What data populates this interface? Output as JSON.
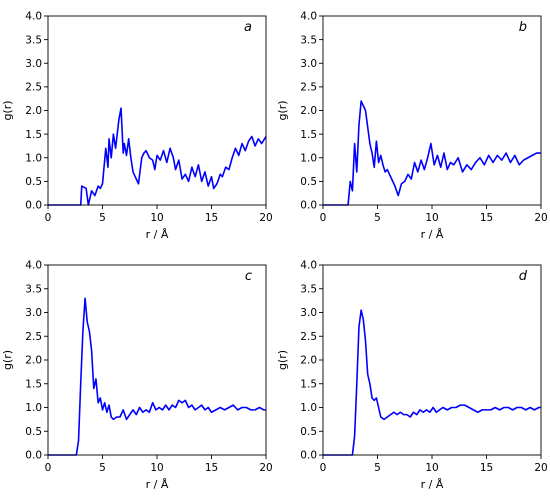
{
  "chart_data": [
    {
      "type": "line",
      "panel_label": "a",
      "xlabel": "r / Å",
      "ylabel": "g(r)",
      "xlim": [
        0,
        20
      ],
      "ylim": [
        0,
        4
      ],
      "xticks": [
        "0",
        "5",
        "10",
        "15",
        "20"
      ],
      "yticks": [
        "0.0",
        "0.5",
        "1.0",
        "1.5",
        "2.0",
        "2.5",
        "3.0",
        "3.5",
        "4.0"
      ],
      "color": "#0000ff",
      "grid": false,
      "series": [
        {
          "x": [
            0,
            3.0,
            3.1,
            3.5,
            3.7,
            4.0,
            4.3,
            4.6,
            4.8,
            5.0,
            5.3,
            5.5,
            5.6,
            5.8,
            6.0,
            6.2,
            6.4,
            6.5,
            6.7,
            6.9,
            7.0,
            7.2,
            7.4,
            7.6,
            7.8,
            8.0,
            8.3,
            8.6,
            8.8,
            9.0,
            9.3,
            9.6,
            9.8,
            10.0,
            10.3,
            10.6,
            10.9,
            11.2,
            11.5,
            11.7,
            12.0,
            12.3,
            12.6,
            12.9,
            13.2,
            13.5,
            13.8,
            14.1,
            14.4,
            14.7,
            15.0,
            15.2,
            15.5,
            15.8,
            16.0,
            16.3,
            16.6,
            16.9,
            17.2,
            17.5,
            17.8,
            18.1,
            18.4,
            18.7,
            19.0,
            19.3,
            19.6,
            20.0
          ],
          "y": [
            0.0,
            0.0,
            0.4,
            0.35,
            0.0,
            0.3,
            0.2,
            0.4,
            0.35,
            0.45,
            1.2,
            0.8,
            1.4,
            1.0,
            1.5,
            1.2,
            1.6,
            1.8,
            2.05,
            1.1,
            1.3,
            1.05,
            1.4,
            1.0,
            0.7,
            0.6,
            0.45,
            1.0,
            1.1,
            1.15,
            1.0,
            0.95,
            0.75,
            1.05,
            0.95,
            1.15,
            0.9,
            1.2,
            1.0,
            0.75,
            0.95,
            0.55,
            0.65,
            0.5,
            0.8,
            0.6,
            0.85,
            0.5,
            0.7,
            0.4,
            0.6,
            0.35,
            0.45,
            0.65,
            0.6,
            0.8,
            0.75,
            1.0,
            1.2,
            1.05,
            1.3,
            1.15,
            1.35,
            1.45,
            1.25,
            1.4,
            1.3,
            1.45
          ]
        }
      ]
    },
    {
      "type": "line",
      "panel_label": "b",
      "xlabel": "r / Å",
      "ylabel": "g(r)",
      "xlim": [
        0,
        20
      ],
      "ylim": [
        0,
        4
      ],
      "xticks": [
        "0",
        "5",
        "10",
        "15",
        "20"
      ],
      "yticks": [
        "0.0",
        "0.5",
        "1.0",
        "1.5",
        "2.0",
        "2.5",
        "3.0",
        "3.5",
        "4.0"
      ],
      "color": "#0000ff",
      "grid": false,
      "series": [
        {
          "x": [
            0,
            2.3,
            2.5,
            2.7,
            2.9,
            3.1,
            3.3,
            3.5,
            3.7,
            3.9,
            4.1,
            4.3,
            4.5,
            4.7,
            4.9,
            5.1,
            5.3,
            5.5,
            5.7,
            5.9,
            6.1,
            6.3,
            6.6,
            6.9,
            7.2,
            7.5,
            7.8,
            8.1,
            8.4,
            8.7,
            9.0,
            9.3,
            9.6,
            9.9,
            10.2,
            10.5,
            10.8,
            11.1,
            11.4,
            11.7,
            12.0,
            12.4,
            12.8,
            13.2,
            13.6,
            14.0,
            14.4,
            14.8,
            15.2,
            15.6,
            16.0,
            16.4,
            16.8,
            17.2,
            17.6,
            18.0,
            18.4,
            18.8,
            19.2,
            19.6,
            20.0
          ],
          "y": [
            0.0,
            0.0,
            0.5,
            0.3,
            1.3,
            0.7,
            1.7,
            2.2,
            2.1,
            2.0,
            1.65,
            1.3,
            1.1,
            0.8,
            1.35,
            0.9,
            1.05,
            0.85,
            0.7,
            0.75,
            0.65,
            0.55,
            0.4,
            0.2,
            0.45,
            0.5,
            0.65,
            0.55,
            0.9,
            0.7,
            0.95,
            0.75,
            1.0,
            1.3,
            0.85,
            1.05,
            0.8,
            1.1,
            0.75,
            0.9,
            0.85,
            1.0,
            0.7,
            0.85,
            0.75,
            0.9,
            1.0,
            0.85,
            1.05,
            0.9,
            1.05,
            0.95,
            1.1,
            0.9,
            1.05,
            0.85,
            0.95,
            1.0,
            1.05,
            1.1,
            1.1
          ]
        }
      ]
    },
    {
      "type": "line",
      "panel_label": "c",
      "xlabel": "r / Å",
      "ylabel": "g(r)",
      "xlim": [
        0,
        20
      ],
      "ylim": [
        0,
        4
      ],
      "xticks": [
        "0",
        "5",
        "10",
        "15",
        "20"
      ],
      "yticks": [
        "0.0",
        "0.5",
        "1.0",
        "1.5",
        "2.0",
        "2.5",
        "3.0",
        "3.5",
        "4.0"
      ],
      "color": "#0000ff",
      "grid": false,
      "series": [
        {
          "x": [
            0,
            2.6,
            2.8,
            3.0,
            3.2,
            3.4,
            3.6,
            3.8,
            4.0,
            4.2,
            4.4,
            4.6,
            4.8,
            5.0,
            5.2,
            5.4,
            5.6,
            5.8,
            6.0,
            6.3,
            6.6,
            6.9,
            7.2,
            7.5,
            7.8,
            8.1,
            8.4,
            8.7,
            9.0,
            9.3,
            9.6,
            9.9,
            10.2,
            10.5,
            10.8,
            11.1,
            11.4,
            11.7,
            12.0,
            12.3,
            12.6,
            12.9,
            13.2,
            13.5,
            13.8,
            14.1,
            14.4,
            14.7,
            15.0,
            15.4,
            15.8,
            16.2,
            16.6,
            17.0,
            17.4,
            17.8,
            18.2,
            18.6,
            19.0,
            19.4,
            19.8,
            20.0
          ],
          "y": [
            0.0,
            0.0,
            0.3,
            1.5,
            2.6,
            3.3,
            2.8,
            2.6,
            2.2,
            1.4,
            1.6,
            1.1,
            1.2,
            0.95,
            1.1,
            0.9,
            1.05,
            0.8,
            0.75,
            0.8,
            0.8,
            0.95,
            0.75,
            0.85,
            0.95,
            0.85,
            1.0,
            0.9,
            0.95,
            0.9,
            1.1,
            0.95,
            1.0,
            0.95,
            1.05,
            0.95,
            1.05,
            1.0,
            1.15,
            1.1,
            1.15,
            1.0,
            1.05,
            0.95,
            1.0,
            1.05,
            0.95,
            1.0,
            0.9,
            0.95,
            1.0,
            0.95,
            1.0,
            1.05,
            0.95,
            1.0,
            1.0,
            0.95,
            0.95,
            1.0,
            0.95,
            0.95
          ]
        }
      ]
    },
    {
      "type": "line",
      "panel_label": "d",
      "xlabel": "r / Å",
      "ylabel": "g(r)",
      "xlim": [
        0,
        20
      ],
      "ylim": [
        0,
        4
      ],
      "xticks": [
        "0",
        "5",
        "10",
        "15",
        "20"
      ],
      "yticks": [
        "0.0",
        "0.5",
        "1.0",
        "1.5",
        "2.0",
        "2.5",
        "3.0",
        "3.5",
        "4.0"
      ],
      "color": "#0000ff",
      "grid": false,
      "series": [
        {
          "x": [
            0,
            2.7,
            2.9,
            3.1,
            3.3,
            3.5,
            3.7,
            3.9,
            4.1,
            4.3,
            4.5,
            4.7,
            4.9,
            5.1,
            5.3,
            5.6,
            5.9,
            6.2,
            6.5,
            6.8,
            7.1,
            7.4,
            7.7,
            8.0,
            8.3,
            8.6,
            8.9,
            9.2,
            9.5,
            9.8,
            10.1,
            10.4,
            10.7,
            11.0,
            11.4,
            11.8,
            12.2,
            12.6,
            13.0,
            13.4,
            13.8,
            14.2,
            14.6,
            15.0,
            15.4,
            15.8,
            16.2,
            16.6,
            17.0,
            17.4,
            17.8,
            18.2,
            18.6,
            19.0,
            19.4,
            19.8,
            20.0
          ],
          "y": [
            0.0,
            0.0,
            0.4,
            1.5,
            2.7,
            3.05,
            2.85,
            2.4,
            1.7,
            1.5,
            1.2,
            1.15,
            1.2,
            1.0,
            0.8,
            0.75,
            0.8,
            0.85,
            0.9,
            0.85,
            0.9,
            0.85,
            0.85,
            0.8,
            0.9,
            0.85,
            0.95,
            0.9,
            0.95,
            0.9,
            1.0,
            0.9,
            0.95,
            1.0,
            0.95,
            1.0,
            1.0,
            1.05,
            1.05,
            1.0,
            0.95,
            0.9,
            0.95,
            0.95,
            0.95,
            1.0,
            0.95,
            1.0,
            1.0,
            0.95,
            1.0,
            1.0,
            0.95,
            1.0,
            0.95,
            1.0,
            1.0
          ]
        }
      ]
    }
  ]
}
